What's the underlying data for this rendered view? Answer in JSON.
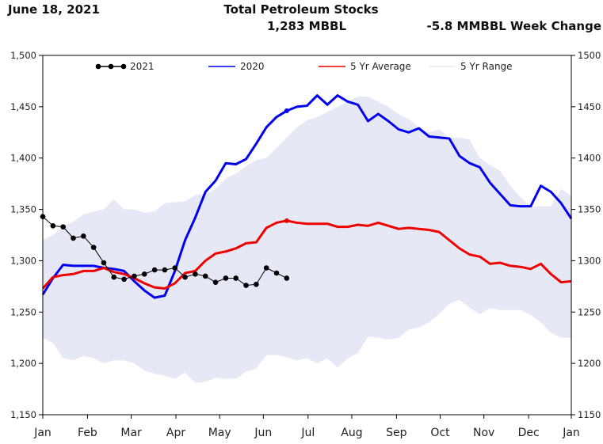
{
  "header": {
    "date": "June 18, 2021",
    "title": "Total Petroleum Stocks",
    "subtitle": "1,283 MBBL",
    "week_change": "-5.8 MMBBL Week Change"
  },
  "chart_data": {
    "type": "line",
    "xlim": [
      0,
      52
    ],
    "ylim": [
      1150,
      1500
    ],
    "y_left_ticks": [
      {
        "v": 1150,
        "label": "1,150"
      },
      {
        "v": 1200,
        "label": "1,200"
      },
      {
        "v": 1250,
        "label": "1,250"
      },
      {
        "v": 1300,
        "label": "1,300"
      },
      {
        "v": 1350,
        "label": "1,350"
      },
      {
        "v": 1400,
        "label": "1,400"
      },
      {
        "v": 1450,
        "label": "1,450"
      },
      {
        "v": 1500,
        "label": "1,500"
      }
    ],
    "y_right_ticks": [
      {
        "v": 1150,
        "label": "1150"
      },
      {
        "v": 1200,
        "label": "1200"
      },
      {
        "v": 1250,
        "label": "1250"
      },
      {
        "v": 1300,
        "label": "1300"
      },
      {
        "v": 1350,
        "label": "1350"
      },
      {
        "v": 1400,
        "label": "1400"
      },
      {
        "v": 1450,
        "label": "1450"
      },
      {
        "v": 1500,
        "label": "1500"
      }
    ],
    "x_ticks": [
      {
        "v": 0,
        "label": "Jan"
      },
      {
        "v": 4.4,
        "label": "Feb"
      },
      {
        "v": 8.7,
        "label": "Mar"
      },
      {
        "v": 13.1,
        "label": "Apr"
      },
      {
        "v": 17.4,
        "label": "May"
      },
      {
        "v": 21.7,
        "label": "Jun"
      },
      {
        "v": 26.1,
        "label": "Jul"
      },
      {
        "v": 30.4,
        "label": "Aug"
      },
      {
        "v": 34.8,
        "label": "Sep"
      },
      {
        "v": 39.1,
        "label": "Oct"
      },
      {
        "v": 43.4,
        "label": "Nov"
      },
      {
        "v": 47.8,
        "label": "Dec"
      },
      {
        "v": 52,
        "label": "Jan"
      }
    ],
    "legend": [
      "2021",
      "2020",
      "5 Yr Average",
      "5 Yr Range"
    ],
    "range_upper": [
      1320,
      1325,
      1333,
      1338,
      1345,
      1348,
      1350,
      1360,
      1350,
      1350,
      1347,
      1348,
      1356,
      1357,
      1358,
      1364,
      1365,
      1370,
      1380,
      1385,
      1392,
      1398,
      1400,
      1410,
      1420,
      1430,
      1437,
      1440,
      1445,
      1450,
      1455,
      1460,
      1460,
      1455,
      1450,
      1443,
      1438,
      1430,
      1425,
      1428,
      1420,
      1420,
      1418,
      1400,
      1393,
      1388,
      1373,
      1362,
      1353,
      1353,
      1353,
      1370,
      1363
    ],
    "range_lower": [
      1225,
      1220,
      1205,
      1203,
      1207,
      1205,
      1200,
      1203,
      1203,
      1200,
      1193,
      1190,
      1188,
      1185,
      1191,
      1181,
      1182,
      1186,
      1185,
      1185,
      1192,
      1195,
      1208,
      1208,
      1206,
      1203,
      1205,
      1200,
      1205,
      1196,
      1205,
      1210,
      1226,
      1225,
      1223,
      1225,
      1233,
      1235,
      1240,
      1248,
      1258,
      1262,
      1254,
      1248,
      1254,
      1252,
      1252,
      1252,
      1247,
      1240,
      1230,
      1225,
      1225
    ],
    "series": [
      {
        "name": "2021",
        "values": [
          1343,
          1334,
          1333,
          1322,
          1324,
          1313,
          1298,
          1284,
          1282,
          1285,
          1287,
          1291,
          1291,
          1293,
          1284,
          1287,
          1285,
          1279,
          1283,
          1283,
          1276,
          1277,
          1293,
          1288,
          1283
        ]
      },
      {
        "name": "2020",
        "values": [
          1267,
          1283,
          1296,
          1295,
          1295,
          1295,
          1293,
          1292,
          1290,
          1280,
          1271,
          1264,
          1266,
          1290,
          1320,
          1342,
          1367,
          1378,
          1395,
          1394,
          1399,
          1414,
          1430,
          1440,
          1446,
          1450,
          1451,
          1461,
          1452,
          1461,
          1455,
          1452,
          1436,
          1443,
          1436,
          1428,
          1425,
          1429,
          1421,
          1420,
          1419,
          1402,
          1395,
          1391,
          1376,
          1365,
          1354,
          1353,
          1353,
          1373,
          1367,
          1356,
          1341
        ]
      },
      {
        "name": "5 Yr Average",
        "values": [
          1273,
          1284,
          1286,
          1287,
          1290,
          1290,
          1293,
          1289,
          1287,
          1283,
          1278,
          1274,
          1273,
          1278,
          1288,
          1290,
          1300,
          1307,
          1309,
          1312,
          1317,
          1318,
          1332,
          1337,
          1339,
          1337,
          1336,
          1336,
          1336,
          1333,
          1333,
          1335,
          1334,
          1337,
          1334,
          1331,
          1332,
          1331,
          1330,
          1328,
          1320,
          1312,
          1306,
          1304,
          1297,
          1298,
          1295,
          1294,
          1292,
          1297,
          1287,
          1279,
          1280
        ]
      }
    ]
  }
}
